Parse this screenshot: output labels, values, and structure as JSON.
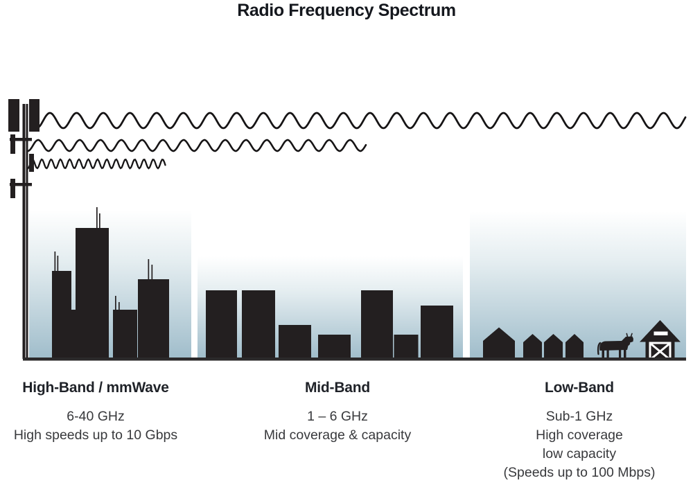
{
  "title": "Radio Frequency Spectrum",
  "bands": [
    {
      "heading": "High-Band / mmWave",
      "lines": [
        "6-40 GHz",
        "High speeds up to 10 Gbps"
      ],
      "scene": "city-skyscrapers",
      "wave": "short-wavelength"
    },
    {
      "heading": "Mid-Band",
      "lines": [
        "1 – 6 GHz",
        "Mid coverage & capacity"
      ],
      "scene": "mid-rise-buildings",
      "wave": "medium-wavelength"
    },
    {
      "heading": "Low-Band",
      "lines": [
        "Sub-1 GHz",
        "High coverage",
        "low capacity",
        "(Speeds up to 100 Mbps)"
      ],
      "scene": "houses-cow-barn",
      "wave": "long-wavelength"
    }
  ],
  "colors": {
    "silhouette": "#231f20",
    "wave_stroke": "#161415",
    "sky_top": "#ffffff",
    "sky_bottom": "#a0bdcb",
    "ground": "#2b292a",
    "title_text": "#15181e",
    "body_text": "#38393c"
  }
}
